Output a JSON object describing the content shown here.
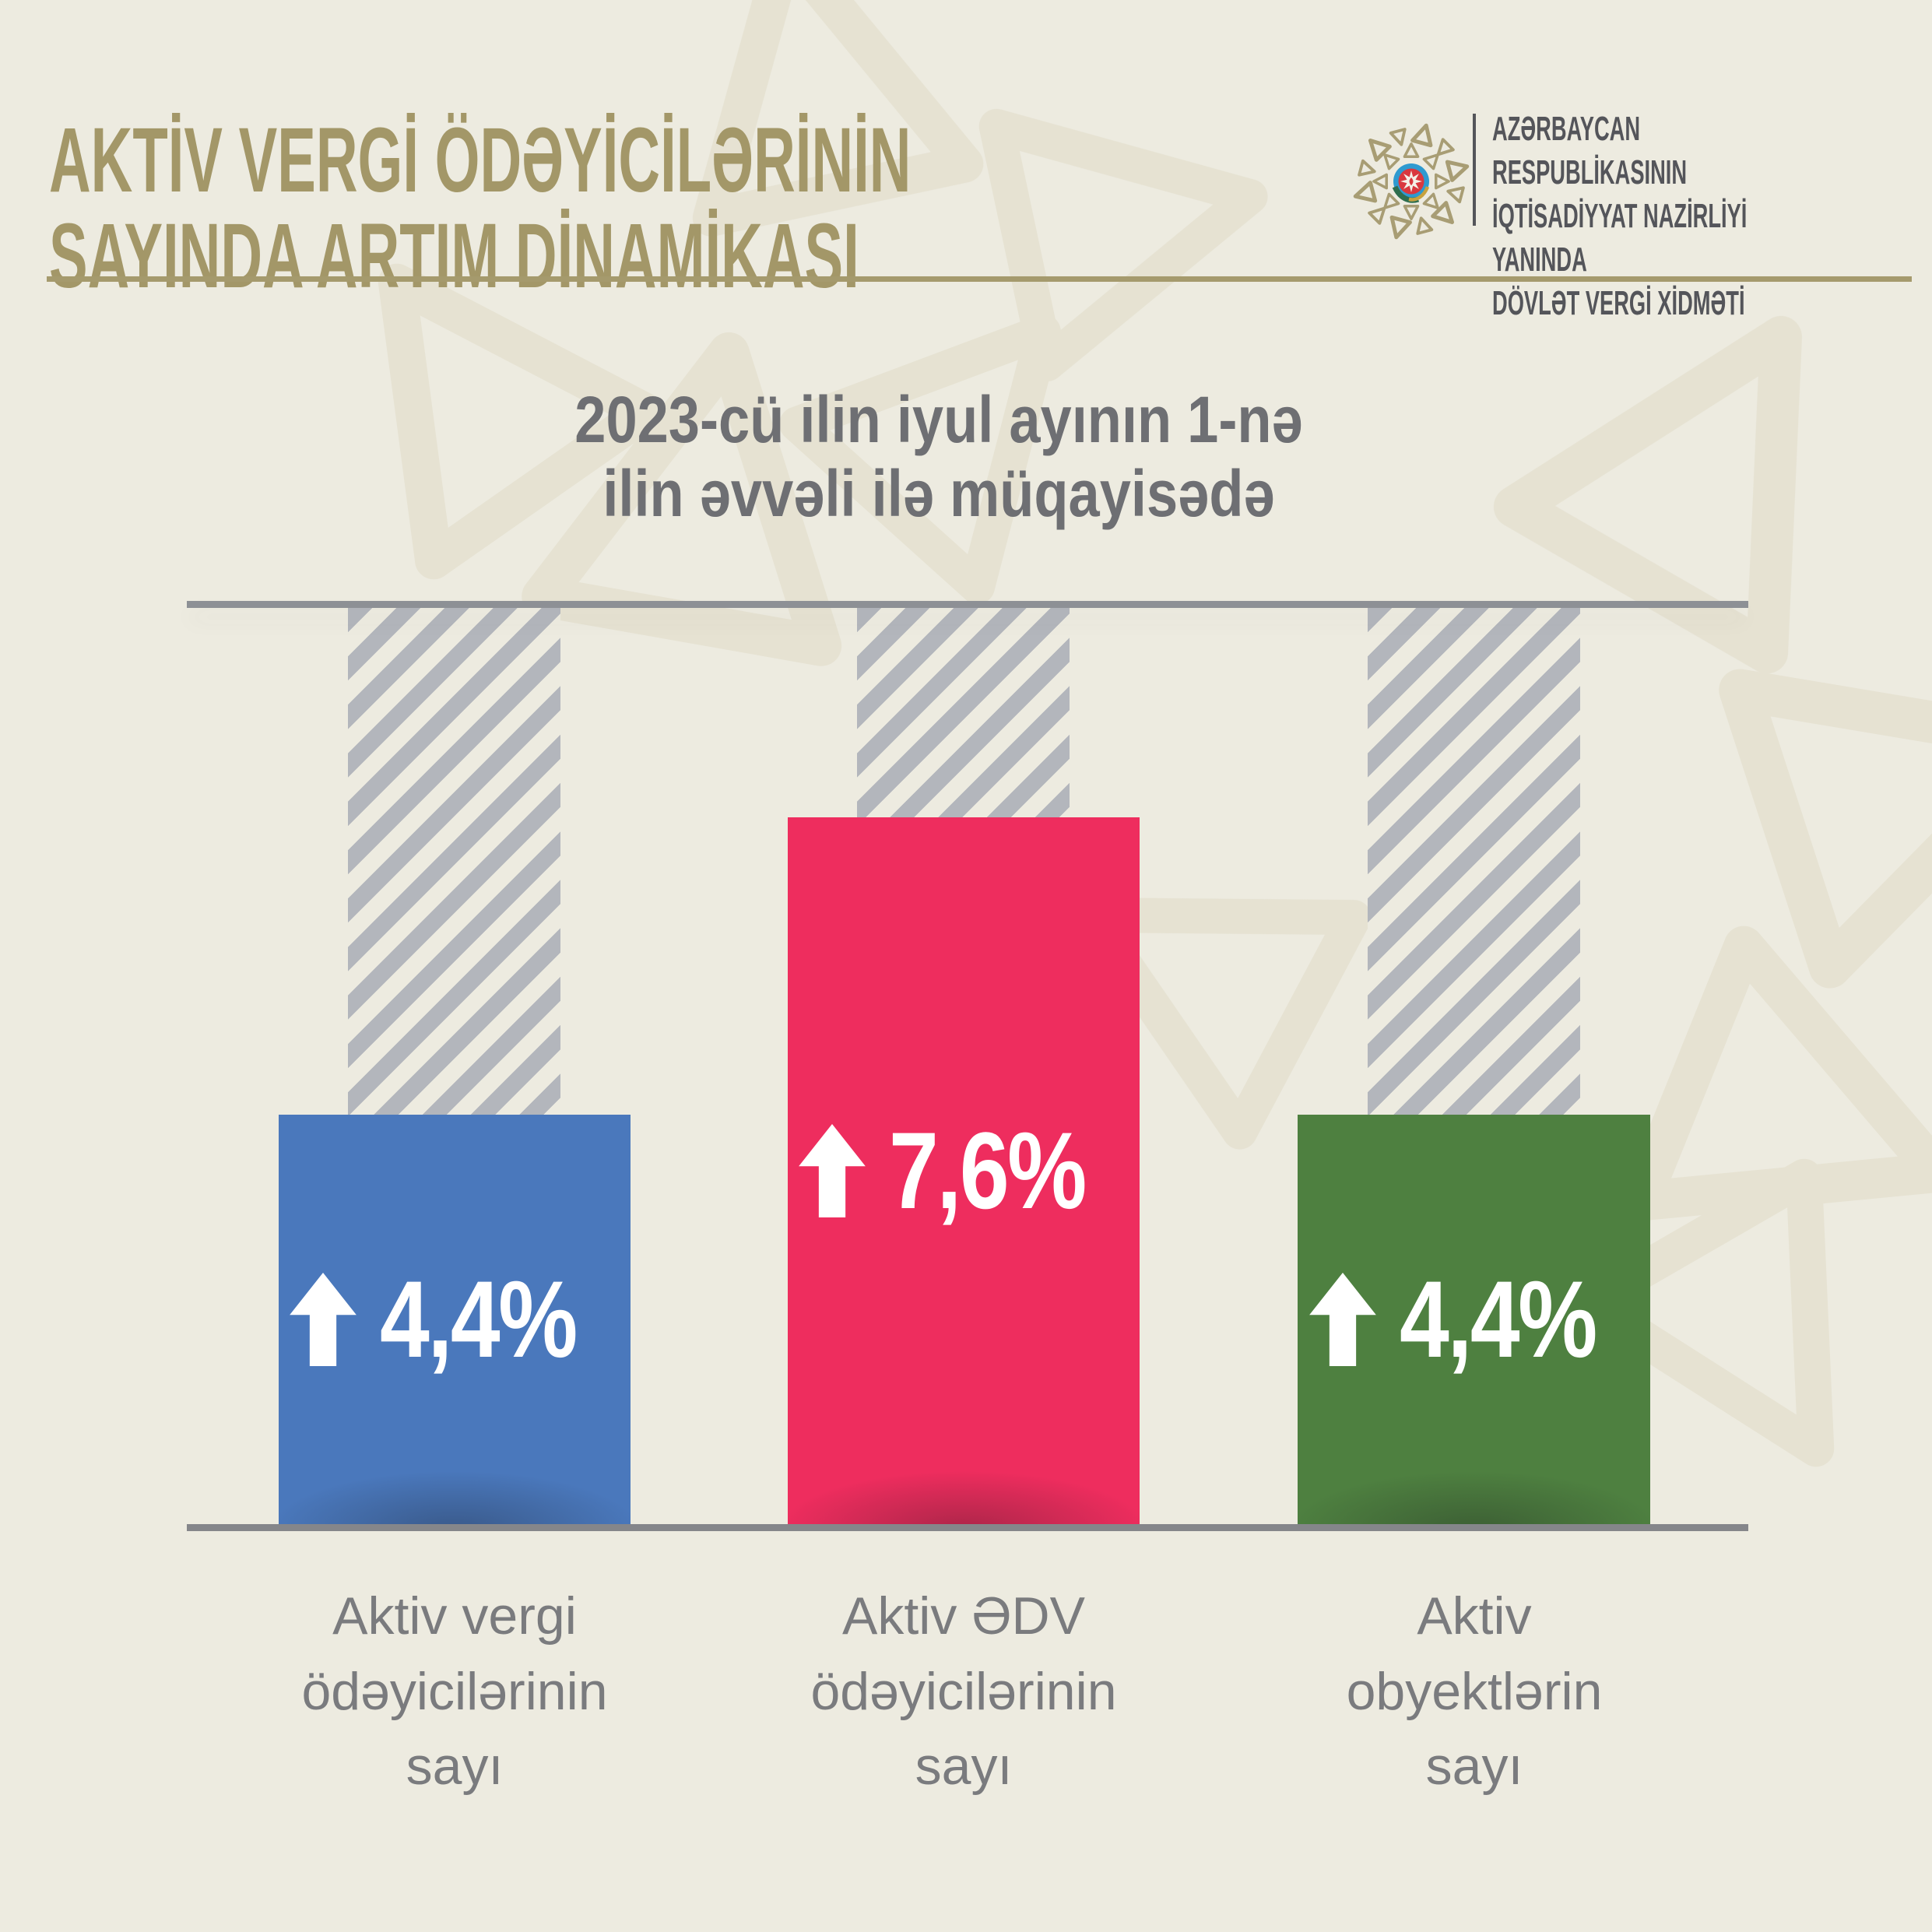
{
  "header": {
    "title": "AKTİV VERGİ ÖDƏYİCİLƏRİNİN\nSAYINDA ARTIM DİNAMİKASI",
    "org": {
      "name": "AZƏRBAYCAN RESPUBLİKASININ\nİQTİSADİYYAT NAZİRLİYİ YANINDA\nDÖVLƏT VERGİ XİDMƏTİ",
      "ornament_icon": "tax-service-ornament",
      "emblem_icon": "azerbaijan-state-emblem"
    }
  },
  "subtitle": "2023-cü ilin iyul ayının 1-nə\nilin əvvəli ilə müqayisədə",
  "colors": {
    "background": "#edebe0",
    "title_text": "#a39768",
    "rule": "#a59a6d",
    "org_text": "#54555a",
    "subtitle_text": "#6e6f73",
    "axis_line": "#8d9095",
    "baseline": "#85868a",
    "hatch": "#b3b6bc",
    "category_text": "#7a7b7e",
    "value_text": "#ffffff",
    "ornament": "#a89d74",
    "bg_pattern": "#e4e0cf"
  },
  "chart_data": {
    "type": "bar",
    "title": "Aktiv vergi ödəyicilərinin sayında artım dinamikası",
    "subtitle": "2023-cü ilin iyul ayının 1-nə ilin əvvəli ilə müqayisədə",
    "unit": "%",
    "ylim": [
      0,
      7.6
    ],
    "grid": false,
    "legend": false,
    "value_label_icon": "up-arrow",
    "pixels_per_percent": 119.5,
    "bars": [
      {
        "category": "Aktiv vergi\nödəyicilərinin\nsayı",
        "value": 4.4,
        "value_label": "4,4%",
        "direction": "up",
        "color": "#4a78bc"
      },
      {
        "category": "Aktiv ƏDV\nödəyicilərinin\nsayı",
        "value": 7.6,
        "value_label": "7,6%",
        "direction": "up",
        "color": "#ee2d5e"
      },
      {
        "category": "Aktiv\nobyektlərin\nsayı",
        "value": 4.4,
        "value_label": "4,4%",
        "direction": "up",
        "color": "#4e8040"
      }
    ]
  }
}
